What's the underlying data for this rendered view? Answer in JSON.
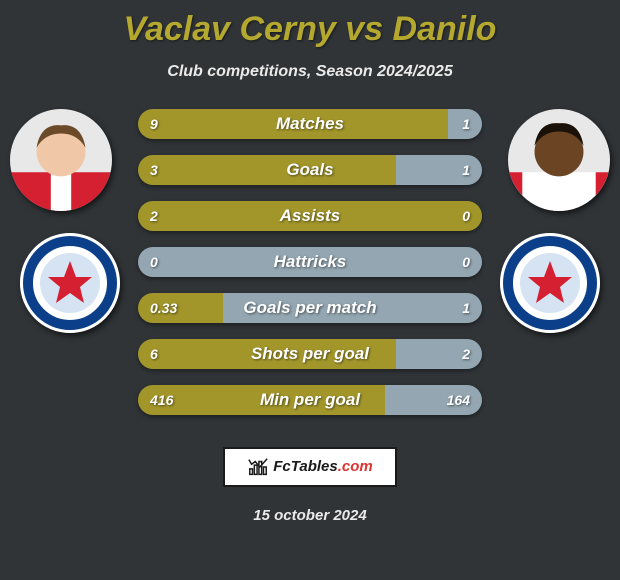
{
  "title": "Vaclav Cerny vs Danilo",
  "subtitle": "Club competitions, Season 2024/2025",
  "colors": {
    "background": "#303437",
    "title": "#b5a82f",
    "left_bar": "#a2962b",
    "right_bar": "#93a6b1",
    "empty_bar": "#93a6b1",
    "text": "#ffffff"
  },
  "player_left": {
    "name": "Vaclav Cerny",
    "avatar": {
      "skin": "#f0c8a8",
      "hair": "#6b4a2a",
      "kit_primary": "#d42030",
      "kit_secondary": "#ffffff"
    },
    "club_badge": {
      "bg": "#ffffff",
      "ring": "#0b3f8a",
      "inner": "#d6e3f3",
      "accent": "#d42030"
    }
  },
  "player_right": {
    "name": "Danilo",
    "avatar": {
      "skin": "#6b4423",
      "hair": "#1a1108",
      "kit_primary": "#ffffff",
      "kit_secondary": "#d42030"
    },
    "club_badge": {
      "bg": "#ffffff",
      "ring": "#0b3f8a",
      "inner": "#d6e3f3",
      "accent": "#d42030"
    }
  },
  "rows": [
    {
      "label": "Matches",
      "left": "9",
      "right": "1",
      "left_pct": 90,
      "right_pct": 10
    },
    {
      "label": "Goals",
      "left": "3",
      "right": "1",
      "left_pct": 75,
      "right_pct": 25
    },
    {
      "label": "Assists",
      "left": "2",
      "right": "0",
      "left_pct": 100,
      "right_pct": 0
    },
    {
      "label": "Hattricks",
      "left": "0",
      "right": "0",
      "left_pct": 0,
      "right_pct": 0
    },
    {
      "label": "Goals per match",
      "left": "0.33",
      "right": "1",
      "left_pct": 24.8,
      "right_pct": 75.2
    },
    {
      "label": "Shots per goal",
      "left": "6",
      "right": "2",
      "left_pct": 75,
      "right_pct": 25
    },
    {
      "label": "Min per goal",
      "left": "416",
      "right": "164",
      "left_pct": 71.7,
      "right_pct": 28.3
    }
  ],
  "brand": {
    "name": "FcTables",
    "suffix": ".com"
  },
  "date": "15 october 2024"
}
